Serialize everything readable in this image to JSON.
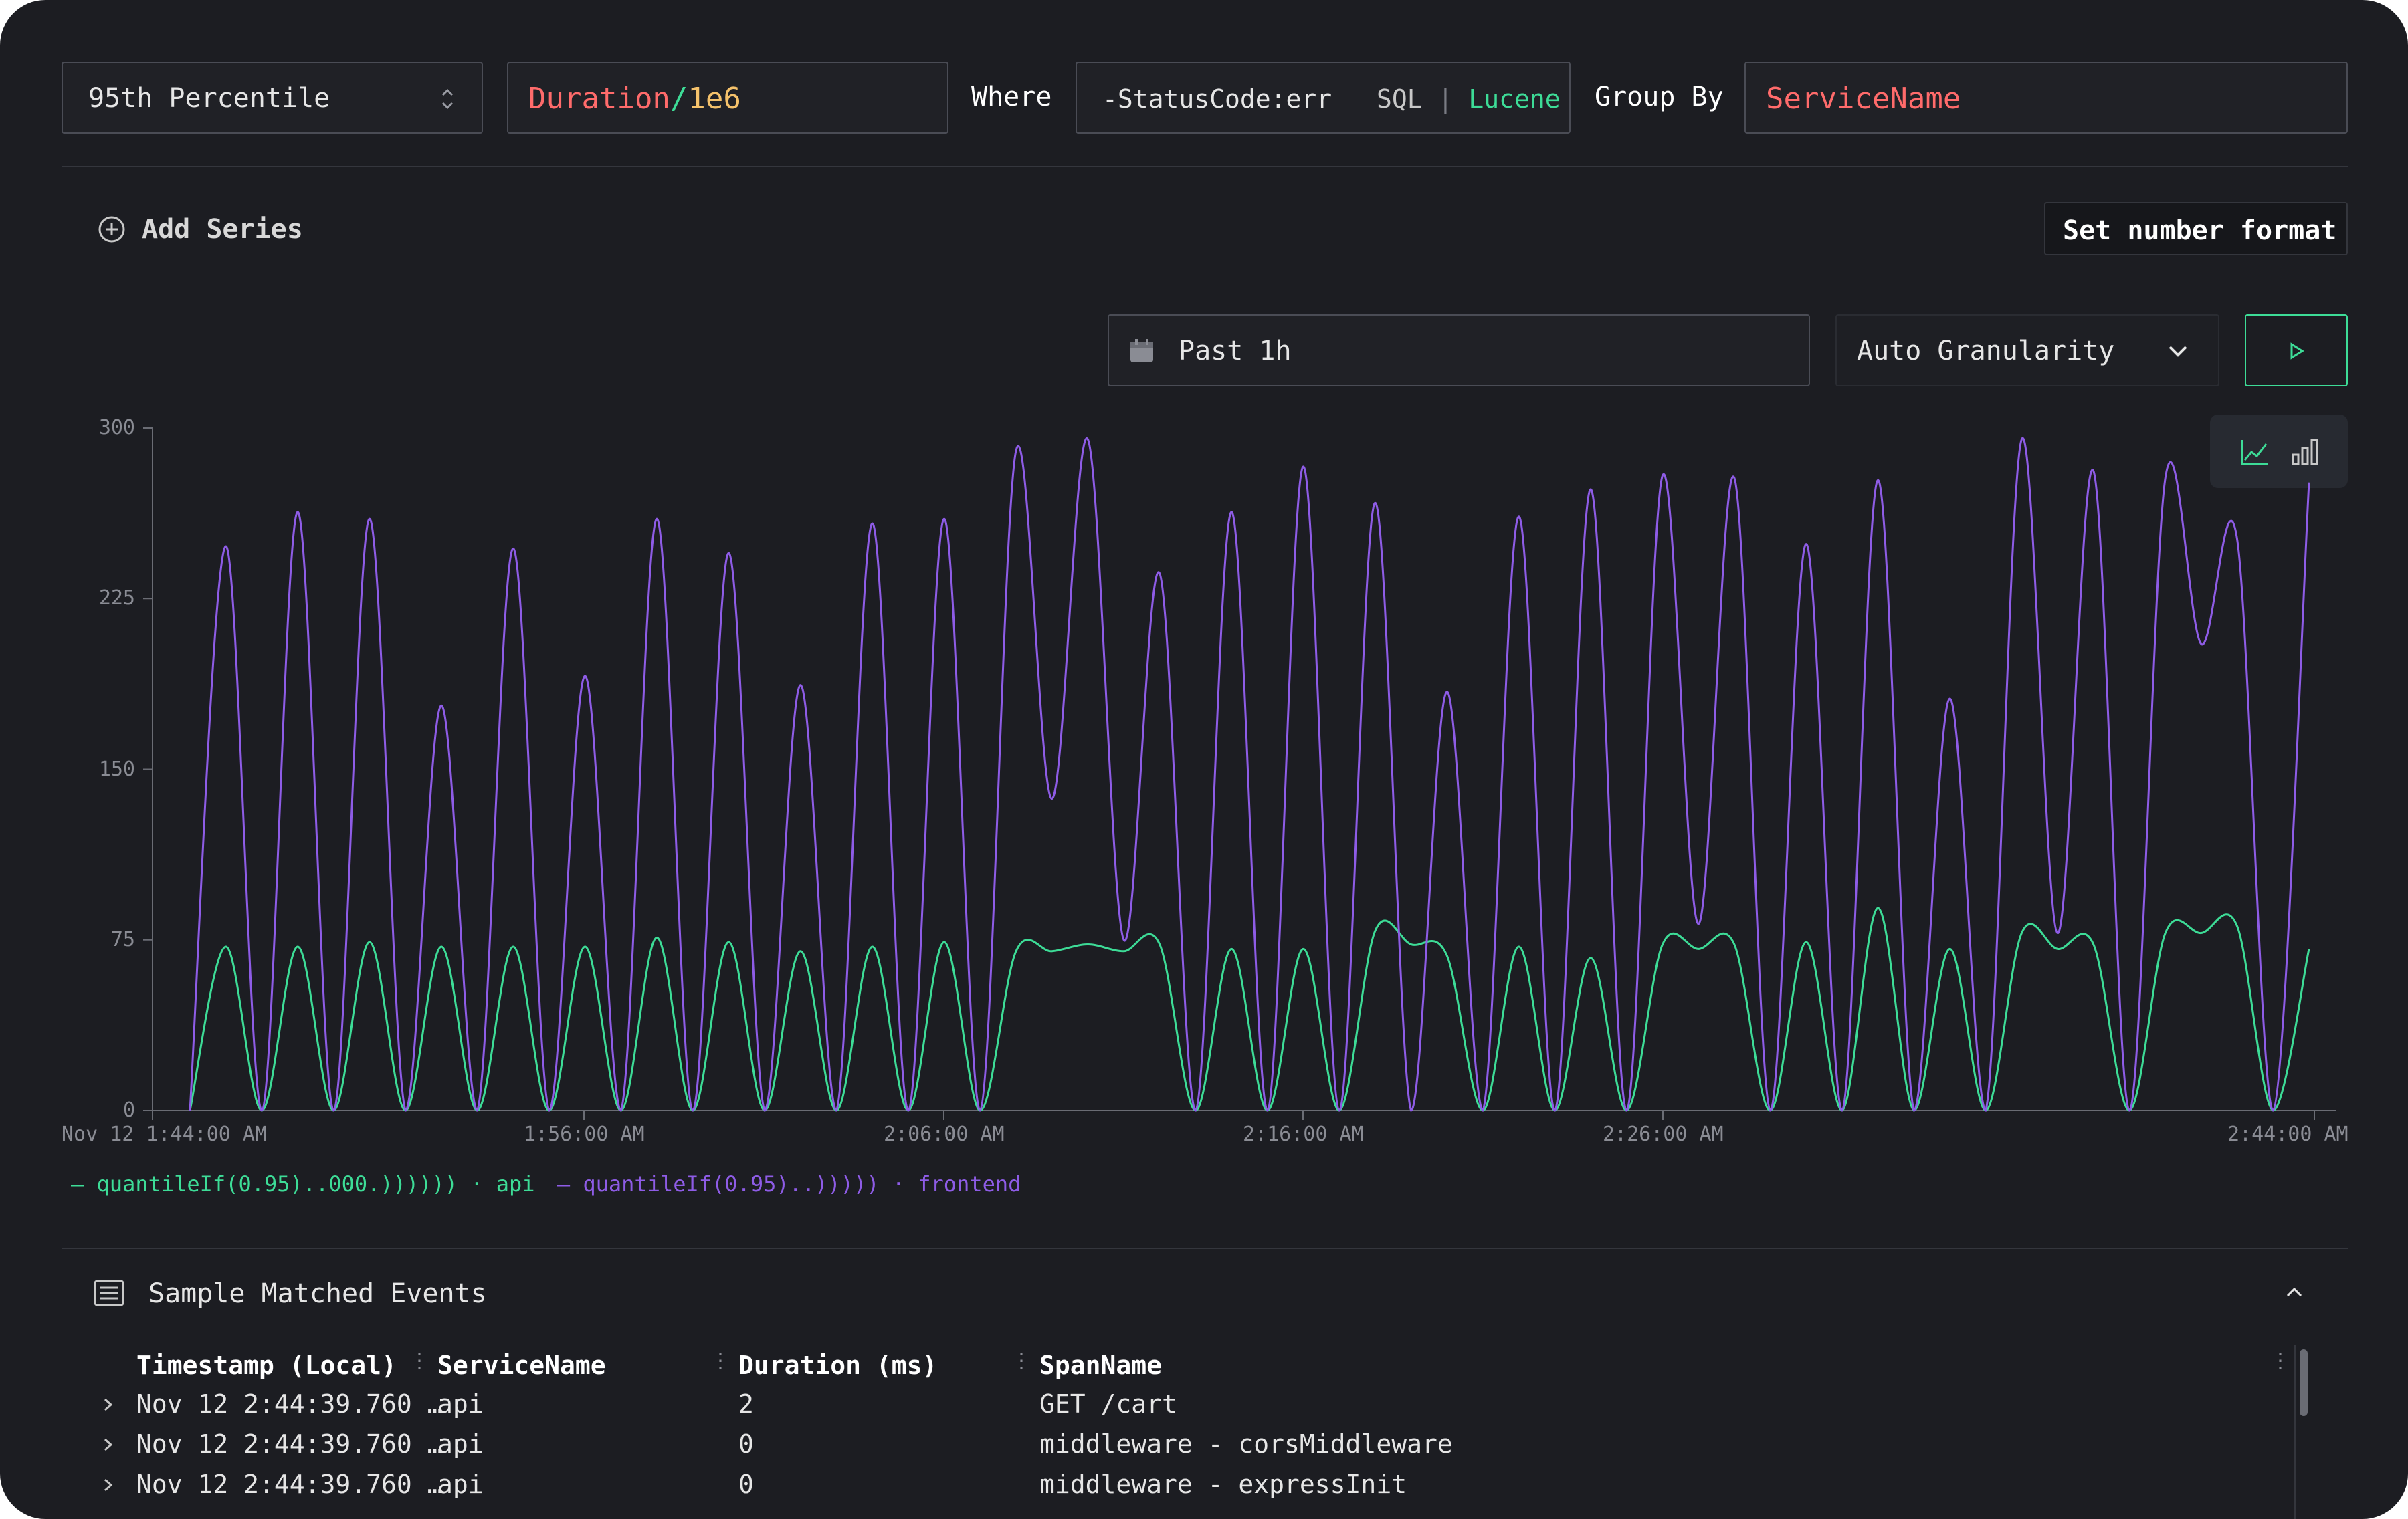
{
  "query": {
    "aggregation": "95th Percentile",
    "field_main": "Duration",
    "field_op": "/",
    "field_num": "1e6",
    "where_label": "Where",
    "where_value": "-StatusCode:err",
    "lang_sql": "SQL",
    "lang_sep": "|",
    "lang_lucene": "Lucene",
    "groupby_label": "Group By",
    "groupby_value": "ServiceName"
  },
  "toolbar": {
    "add_series": "Add Series",
    "set_number_format": "Set number format",
    "time_range": "Past 1h",
    "granularity": "Auto Granularity"
  },
  "colors": {
    "background": "#1c1d22",
    "accent_green": "#3ddc97",
    "series_purple": "#8e5ce6",
    "token_red": "#ff6b6b",
    "token_yellow": "#f5c26b"
  },
  "chart_data": {
    "type": "line",
    "yticks": [
      "300",
      "225",
      "150",
      "75",
      "0"
    ],
    "ylim": [
      0,
      300
    ],
    "xtick_labels": [
      "Nov 12 1:44:00 AM",
      "1:56:00 AM",
      "2:06:00 AM",
      "2:16:00 AM",
      "2:26:00 AM",
      "2:44:00 AM"
    ],
    "legend": "bottom-left",
    "series": [
      {
        "label": "quantileIf(0.95)..000.))))))",
        "service": "api",
        "color": "#3ddc97",
        "points": [
          [
            0,
            0
          ],
          [
            1,
            72
          ],
          [
            2,
            0
          ],
          [
            3,
            72
          ],
          [
            4,
            0
          ],
          [
            5,
            74
          ],
          [
            6,
            0
          ],
          [
            7,
            72
          ],
          [
            8,
            0
          ],
          [
            9,
            72
          ],
          [
            10,
            0
          ],
          [
            11,
            72
          ],
          [
            12,
            0
          ],
          [
            13,
            76
          ],
          [
            14,
            0
          ],
          [
            15,
            74
          ],
          [
            16,
            0
          ],
          [
            17,
            70
          ],
          [
            18,
            0
          ],
          [
            19,
            72
          ],
          [
            20,
            0
          ],
          [
            21,
            74
          ],
          [
            22,
            0
          ],
          [
            23,
            70
          ],
          [
            24,
            70
          ],
          [
            25,
            73
          ],
          [
            26,
            70
          ],
          [
            27,
            73
          ],
          [
            28,
            0
          ],
          [
            29,
            71
          ],
          [
            30,
            0
          ],
          [
            31,
            71
          ],
          [
            32,
            0
          ],
          [
            33,
            79
          ],
          [
            34,
            73
          ],
          [
            35,
            68
          ],
          [
            36,
            0
          ],
          [
            37,
            72
          ],
          [
            38,
            0
          ],
          [
            39,
            67
          ],
          [
            40,
            0
          ],
          [
            41,
            73
          ],
          [
            42,
            71
          ],
          [
            43,
            73
          ],
          [
            44,
            0
          ],
          [
            45,
            74
          ],
          [
            46,
            0
          ],
          [
            47,
            89
          ],
          [
            48,
            0
          ],
          [
            49,
            71
          ],
          [
            50,
            0
          ],
          [
            51,
            78
          ],
          [
            52,
            71
          ],
          [
            53,
            73
          ],
          [
            54,
            0
          ],
          [
            55,
            78
          ],
          [
            56,
            78
          ],
          [
            57,
            81
          ],
          [
            58,
            0
          ],
          [
            59,
            71
          ]
        ]
      },
      {
        "label": "quantileIf(0.95)..)))))",
        "service": "frontend",
        "color": "#8e5ce6",
        "points": [
          [
            0,
            0
          ],
          [
            1,
            248
          ],
          [
            2,
            0
          ],
          [
            3,
            263
          ],
          [
            4,
            0
          ],
          [
            5,
            260
          ],
          [
            6,
            0
          ],
          [
            7,
            178
          ],
          [
            8,
            0
          ],
          [
            9,
            247
          ],
          [
            10,
            0
          ],
          [
            11,
            191
          ],
          [
            12,
            0
          ],
          [
            13,
            260
          ],
          [
            14,
            0
          ],
          [
            15,
            245
          ],
          [
            16,
            0
          ],
          [
            17,
            187
          ],
          [
            18,
            0
          ],
          [
            19,
            258
          ],
          [
            20,
            0
          ],
          [
            21,
            260
          ],
          [
            22,
            0
          ],
          [
            23,
            290
          ],
          [
            24,
            137
          ],
          [
            25,
            295
          ],
          [
            26,
            75
          ],
          [
            27,
            236
          ],
          [
            28,
            0
          ],
          [
            29,
            263
          ],
          [
            30,
            0
          ],
          [
            31,
            283
          ],
          [
            32,
            0
          ],
          [
            33,
            267
          ],
          [
            34,
            0
          ],
          [
            35,
            184
          ],
          [
            36,
            0
          ],
          [
            37,
            261
          ],
          [
            38,
            0
          ],
          [
            39,
            273
          ],
          [
            40,
            0
          ],
          [
            41,
            279
          ],
          [
            42,
            82
          ],
          [
            43,
            278
          ],
          [
            44,
            0
          ],
          [
            45,
            249
          ],
          [
            46,
            0
          ],
          [
            47,
            277
          ],
          [
            48,
            0
          ],
          [
            49,
            181
          ],
          [
            50,
            0
          ],
          [
            51,
            295
          ],
          [
            52,
            78
          ],
          [
            53,
            281
          ],
          [
            54,
            0
          ],
          [
            55,
            278
          ],
          [
            56,
            205
          ],
          [
            57,
            251
          ],
          [
            58,
            0
          ],
          [
            59,
            276
          ]
        ]
      }
    ]
  },
  "events": {
    "title": "Sample Matched Events",
    "columns": [
      "Timestamp (Local)",
      "ServiceName",
      "Duration (ms)",
      "SpanName"
    ],
    "rows": [
      [
        "Nov 12 2:44:39.760 …",
        "api",
        "2",
        "GET /cart"
      ],
      [
        "Nov 12 2:44:39.760 …",
        "api",
        "0",
        "middleware - corsMiddleware"
      ],
      [
        "Nov 12 2:44:39.760 …",
        "api",
        "0",
        "middleware - expressInit"
      ]
    ]
  }
}
